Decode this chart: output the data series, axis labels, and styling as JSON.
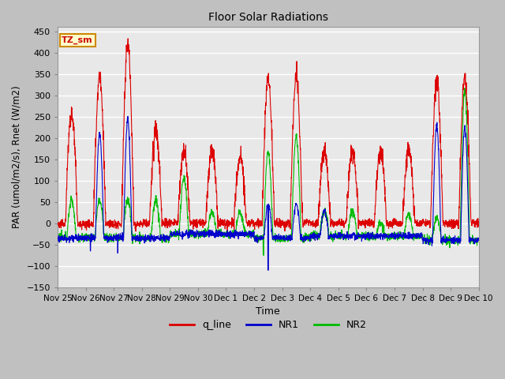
{
  "title": "Floor Solar Radiations",
  "xlabel": "Time",
  "ylabel": "PAR (umol/m2/s), Rnet (W/m2)",
  "ylim": [
    -150,
    460
  ],
  "yticks": [
    -150,
    -100,
    -50,
    0,
    50,
    100,
    150,
    200,
    250,
    300,
    350,
    400,
    450
  ],
  "fig_bg": "#c8c8c8",
  "axes_bg": "#e0e0e0",
  "grid_color": "#f0f0f0",
  "line_colors": {
    "q_line": "#dd0000",
    "NR1": "#0000cc",
    "NR2": "#00bb00"
  },
  "annotation_text": "TZ_sm",
  "annotation_bg": "#ffffcc",
  "annotation_border": "#cc8800",
  "x_tick_labels": [
    "Nov 25",
    "Nov 26",
    "Nov 27",
    "Nov 28",
    "Nov 29",
    "Nov 30",
    "Dec 1",
    "Dec 2",
    "Dec 3",
    "Dec 4",
    "Dec 5",
    "Dec 6",
    "Dec 7",
    "Dec 8",
    "Dec 9",
    "Dec 10"
  ],
  "seed": 12345
}
